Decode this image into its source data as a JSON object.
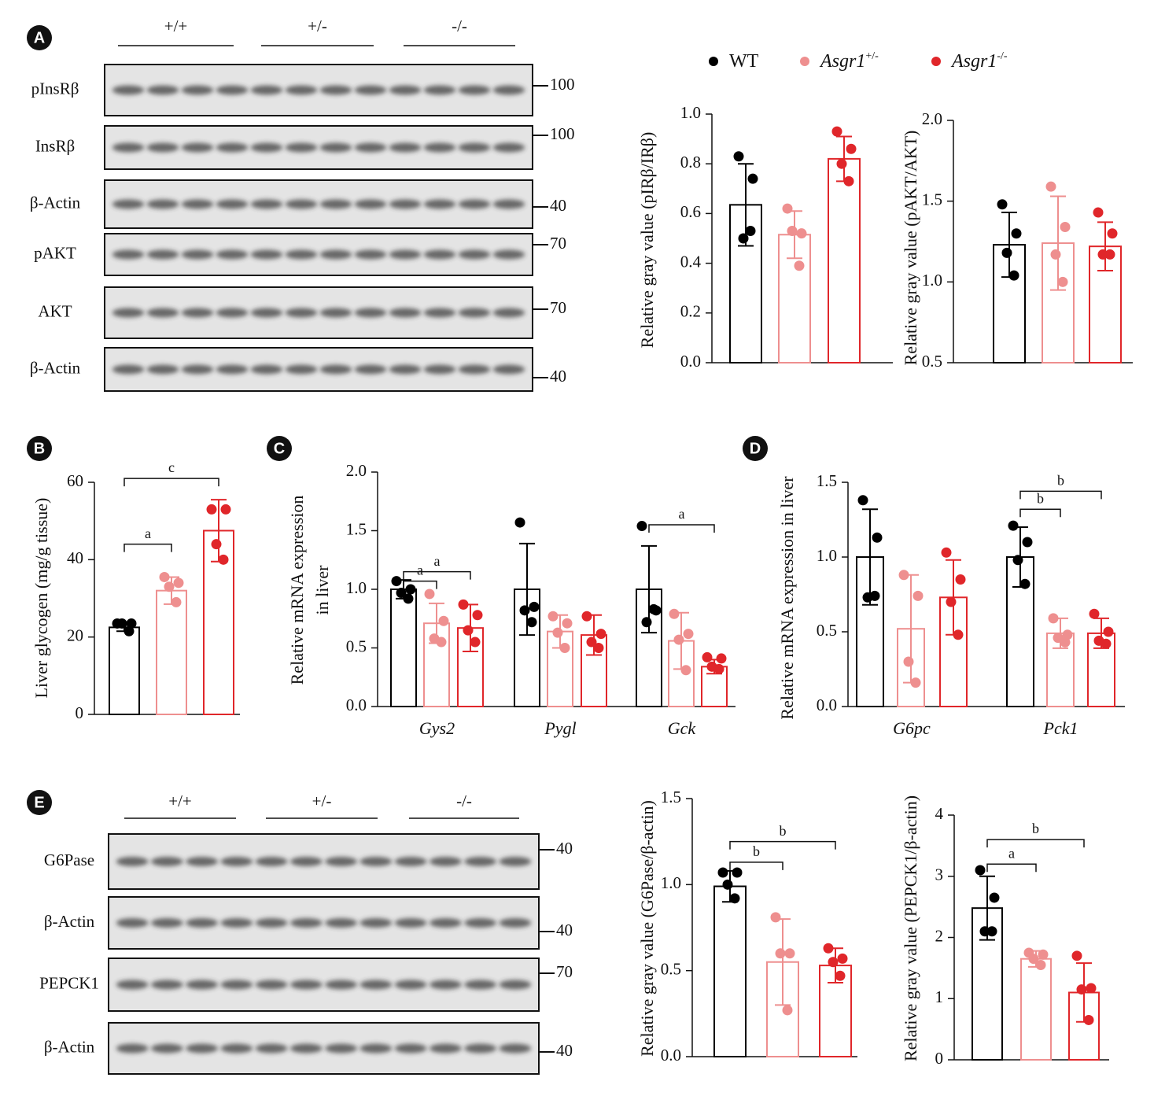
{
  "panel_letters": [
    "A",
    "B",
    "C",
    "D",
    "E"
  ],
  "legend": [
    {
      "name": "WT",
      "color": "#000000"
    },
    {
      "name": "Asgr1",
      "superscript": "+/-",
      "color": "#ee8f8f"
    },
    {
      "name": "Asgr1",
      "superscript": "-/-",
      "color": "#e0262a"
    }
  ],
  "blots": [
    {
      "groups": [
        "+/+",
        "+/-",
        "-/-"
      ],
      "rows": [
        {
          "label": "pInsRβ",
          "marker": 100
        },
        {
          "label": "InsRβ",
          "marker": 100
        },
        {
          "label": "β-Actin",
          "marker": 40
        },
        {
          "label": "pAKT",
          "marker": 70
        },
        {
          "label": "AKT",
          "marker": 70
        },
        {
          "label": "β-Actin",
          "marker": 40
        }
      ]
    },
    {
      "groups": [
        "+/+",
        "+/-",
        "-/-"
      ],
      "rows": [
        {
          "label": "G6Pase",
          "marker": 40
        },
        {
          "label": "β-Actin",
          "marker": 40
        },
        {
          "label": "PEPCK1",
          "marker": 70
        },
        {
          "label": "β-Actin",
          "marker": 40
        }
      ]
    }
  ],
  "chart_data": [
    {
      "type": "bar",
      "ylabel": "Relative gray value (pIRβ/IRβ)",
      "ylim": [
        0,
        1.0
      ],
      "yticks": [
        {
          "value": 0,
          "label": "0.0"
        },
        0.2,
        0.4,
        0.6,
        0.8,
        {
          "value": 1,
          "label": "1.0"
        }
      ],
      "series": [
        {
          "values": [
            0.635
          ],
          "errors": [
            0.165
          ],
          "points": [
            [
              0.83,
              0.74,
              0.5,
              0.53
            ]
          ]
        },
        {
          "values": [
            0.515
          ],
          "errors": [
            0.095
          ],
          "points": [
            [
              0.62,
              0.52,
              0.53,
              0.39
            ]
          ]
        },
        {
          "values": [
            0.82
          ],
          "errors": [
            0.09
          ],
          "points": [
            [
              0.93,
              0.86,
              0.8,
              0.73
            ]
          ]
        }
      ]
    },
    {
      "type": "bar",
      "ylabel": "Relative gray value (pAKT/AKT)",
      "ylim": [
        0.5,
        2.0
      ],
      "yticks": [
        0.5,
        {
          "value": 1,
          "label": "1.0"
        },
        1.5,
        {
          "value": 2,
          "label": "2.0"
        }
      ],
      "series": [
        {
          "values": [
            1.23
          ],
          "errors": [
            0.2
          ],
          "points": [
            [
              1.48,
              1.3,
              1.18,
              1.04
            ]
          ]
        },
        {
          "values": [
            1.24
          ],
          "errors": [
            0.29
          ],
          "points": [
            [
              1.59,
              1.34,
              1.17,
              1.0
            ]
          ]
        },
        {
          "values": [
            1.22
          ],
          "errors": [
            0.15
          ],
          "points": [
            [
              1.43,
              1.3,
              1.17,
              1.17
            ]
          ]
        }
      ]
    },
    {
      "type": "bar",
      "ylabel": "Liver glycogen (mg/g tissue)",
      "ylim": [
        0,
        60
      ],
      "yticks": [
        0,
        20,
        40,
        60
      ],
      "series": [
        {
          "values": [
            22.5
          ],
          "errors": [
            1
          ],
          "points": [
            [
              23.5,
              23.5,
              23.5,
              21.5
            ]
          ]
        },
        {
          "values": [
            32
          ],
          "errors": [
            3.5
          ],
          "points": [
            [
              35.5,
              34,
              33,
              29
            ]
          ]
        },
        {
          "values": [
            47.5
          ],
          "errors": [
            8
          ],
          "points": [
            [
              53,
              53,
              44,
              40
            ]
          ]
        }
      ],
      "annotations": [
        {
          "text": "a",
          "category": 0,
          "from": 0,
          "to": 1,
          "y": 44
        },
        {
          "text": "c",
          "category": 0,
          "from": 0,
          "to": 2,
          "y": 61
        }
      ]
    },
    {
      "type": "bar",
      "ylabel": [
        "Relative mRNA expression",
        "in liver"
      ],
      "ylim": [
        0,
        2.0
      ],
      "yticks": [
        {
          "value": 0,
          "label": "0.0"
        },
        0.5,
        {
          "value": 1,
          "label": "1.0"
        },
        1.5,
        {
          "value": 2,
          "label": "2.0"
        }
      ],
      "categories": [
        "Gys2",
        "Pygl",
        "Gck"
      ],
      "series": [
        {
          "values": [
            1.0,
            1.0,
            1.0
          ],
          "errors": [
            0.08,
            0.39,
            0.37
          ],
          "points": [
            [
              1.07,
              1.0,
              0.97,
              0.92
            ],
            [
              1.57,
              0.85,
              0.82,
              0.72
            ],
            [
              1.54,
              0.82,
              0.72,
              0.83
            ]
          ]
        },
        {
          "values": [
            0.71,
            0.64,
            0.56
          ],
          "errors": [
            0.17,
            0.14,
            0.24
          ],
          "points": [
            [
              0.96,
              0.73,
              0.58,
              0.55
            ],
            [
              0.77,
              0.71,
              0.63,
              0.5
            ],
            [
              0.79,
              0.62,
              0.57,
              0.31
            ]
          ]
        },
        {
          "values": [
            0.67,
            0.61,
            0.34
          ],
          "errors": [
            0.2,
            0.17,
            0.06
          ],
          "points": [
            [
              0.87,
              0.78,
              0.65,
              0.55
            ],
            [
              0.77,
              0.62,
              0.55,
              0.5
            ],
            [
              0.42,
              0.41,
              0.34,
              0.32
            ]
          ]
        }
      ],
      "annotations": [
        {
          "text": "a",
          "category": 0,
          "from": 0,
          "to": 1,
          "y": 1.07
        },
        {
          "text": "a",
          "category": 0,
          "from": 0,
          "to": 2,
          "y": 1.15
        },
        {
          "text": "a",
          "category": 2,
          "from": 0,
          "to": 2,
          "y": 1.55
        }
      ]
    },
    {
      "type": "bar",
      "ylabel": "Relative mRNA expression in liver",
      "ylim": [
        0,
        1.5
      ],
      "yticks": [
        {
          "value": 0,
          "label": "0.0"
        },
        0.5,
        {
          "value": 1,
          "label": "1.0"
        },
        1.5
      ],
      "categories": [
        "G6pc",
        "Pck1"
      ],
      "series": [
        {
          "values": [
            1.0,
            1.0
          ],
          "errors": [
            0.32,
            0.2
          ],
          "points": [
            [
              1.38,
              1.13,
              0.73,
              0.74
            ],
            [
              1.21,
              1.1,
              0.98,
              0.82
            ]
          ]
        },
        {
          "values": [
            0.52,
            0.49
          ],
          "errors": [
            0.36,
            0.1
          ],
          "points": [
            [
              0.88,
              0.74,
              0.3,
              0.16
            ],
            [
              0.59,
              0.48,
              0.46,
              0.43
            ]
          ]
        },
        {
          "values": [
            0.73,
            0.49
          ],
          "errors": [
            0.25,
            0.1
          ],
          "points": [
            [
              1.03,
              0.85,
              0.7,
              0.48
            ],
            [
              0.62,
              0.5,
              0.44,
              0.42
            ]
          ]
        }
      ],
      "annotations": [
        {
          "text": "b",
          "category": 1,
          "from": 0,
          "to": 1,
          "y": 1.32
        },
        {
          "text": "b",
          "category": 1,
          "from": 0,
          "to": 2,
          "y": 1.44
        }
      ]
    },
    {
      "type": "bar",
      "ylabel": "Relative gray value (G6Pase/β-actin)",
      "ylim": [
        0,
        1.5
      ],
      "yticks": [
        {
          "value": 0,
          "label": "0.0"
        },
        0.5,
        {
          "value": 1,
          "label": "1.0"
        },
        1.5
      ],
      "series": [
        {
          "values": [
            0.99
          ],
          "errors": [
            0.09
          ],
          "points": [
            [
              1.07,
              1.07,
              1.0,
              0.92
            ]
          ]
        },
        {
          "values": [
            0.55
          ],
          "errors": [
            0.25
          ],
          "points": [
            [
              0.81,
              0.6,
              0.6,
              0.27
            ]
          ]
        },
        {
          "values": [
            0.53
          ],
          "errors": [
            0.1
          ],
          "points": [
            [
              0.63,
              0.57,
              0.55,
              0.47
            ]
          ]
        }
      ],
      "annotations": [
        {
          "text": "b",
          "category": 0,
          "from": 0,
          "to": 1,
          "y": 1.13
        },
        {
          "text": "b",
          "category": 0,
          "from": 0,
          "to": 2,
          "y": 1.25
        }
      ]
    },
    {
      "type": "bar",
      "ylabel": "Relative gray value (PEPCK1/β-actin)",
      "ylim": [
        0,
        4
      ],
      "yticks": [
        0,
        1,
        2,
        3,
        4
      ],
      "series": [
        {
          "values": [
            2.48
          ],
          "errors": [
            0.52
          ],
          "points": [
            [
              3.1,
              2.65,
              2.1,
              2.1
            ]
          ]
        },
        {
          "values": [
            1.65
          ],
          "errors": [
            0.13
          ],
          "points": [
            [
              1.75,
              1.72,
              1.65,
              1.55
            ]
          ]
        },
        {
          "values": [
            1.1
          ],
          "errors": [
            0.48
          ],
          "points": [
            [
              1.7,
              1.17,
              1.15,
              0.65
            ]
          ]
        }
      ],
      "annotations": [
        {
          "text": "a",
          "category": 0,
          "from": 0,
          "to": 1,
          "y": 3.2
        },
        {
          "text": "b",
          "category": 0,
          "from": 0,
          "to": 2,
          "y": 3.6
        }
      ]
    }
  ]
}
